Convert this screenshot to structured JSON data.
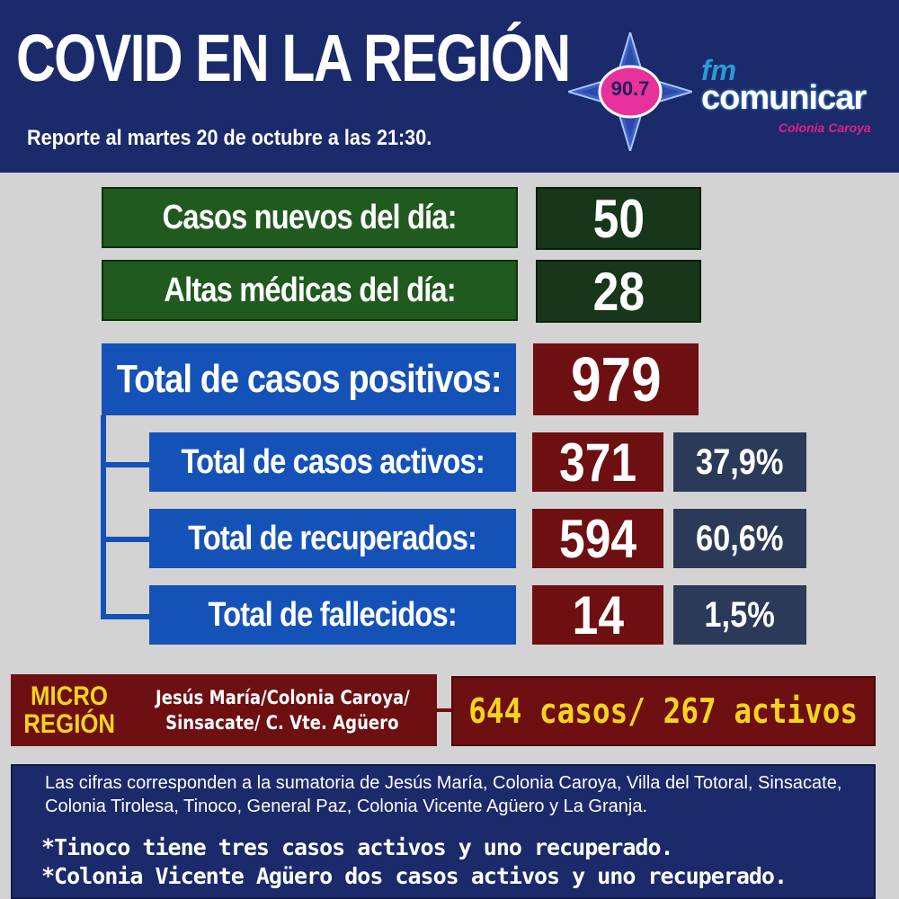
{
  "header": {
    "title": "COVID EN LA REGIÓN",
    "subtitle": "Reporte al martes 20 de octubre a las 21:30."
  },
  "logo": {
    "frequency": "90.7",
    "fm": "fm",
    "name": "comunicar",
    "location": "Colonia Caroya"
  },
  "daily": {
    "new_cases_label": "Casos nuevos del día:",
    "new_cases_value": "50",
    "discharges_label": "Altas médicas del día:",
    "discharges_value": "28"
  },
  "totals": {
    "positive_label": "Total de casos positivos:",
    "positive_value": "979",
    "active_label": "Total de casos activos:",
    "active_value": "371",
    "active_pct": "37,9%",
    "recovered_label": "Total de recuperados:",
    "recovered_value": "594",
    "recovered_pct": "60,6%",
    "deceased_label": "Total de fallecidos:",
    "deceased_value": "14",
    "deceased_pct": "1,5%"
  },
  "micro_region": {
    "label_line1": "MICRO",
    "label_line2": "REGIÓN",
    "places_line1": "Jesús María/Colonia Caroya/",
    "places_line2": "Sinsacate/ C. Vte. Agüero",
    "summary": "644 casos/ 267 activos"
  },
  "footer": {
    "note": "Las cifras corresponden a la sumatoria de Jesús María, Colonia Caroya, Villa del Totoral, Sinsacate, Colonia Tirolesa, Tinoco, General Paz, Colonia Vicente Agüero  y La Granja.",
    "line1": "*Tinoco tiene tres casos activos y uno recuperado.",
    "line2": "*Colonia Vicente Agüero dos casos activos y uno recuperado."
  },
  "colors": {
    "header_bg": "#1b2a6b",
    "green": "#215a1f",
    "blue": "#1552b8",
    "maroon": "#6e0f12",
    "slate": "#2a3a58",
    "yellow": "#f5d51b"
  }
}
